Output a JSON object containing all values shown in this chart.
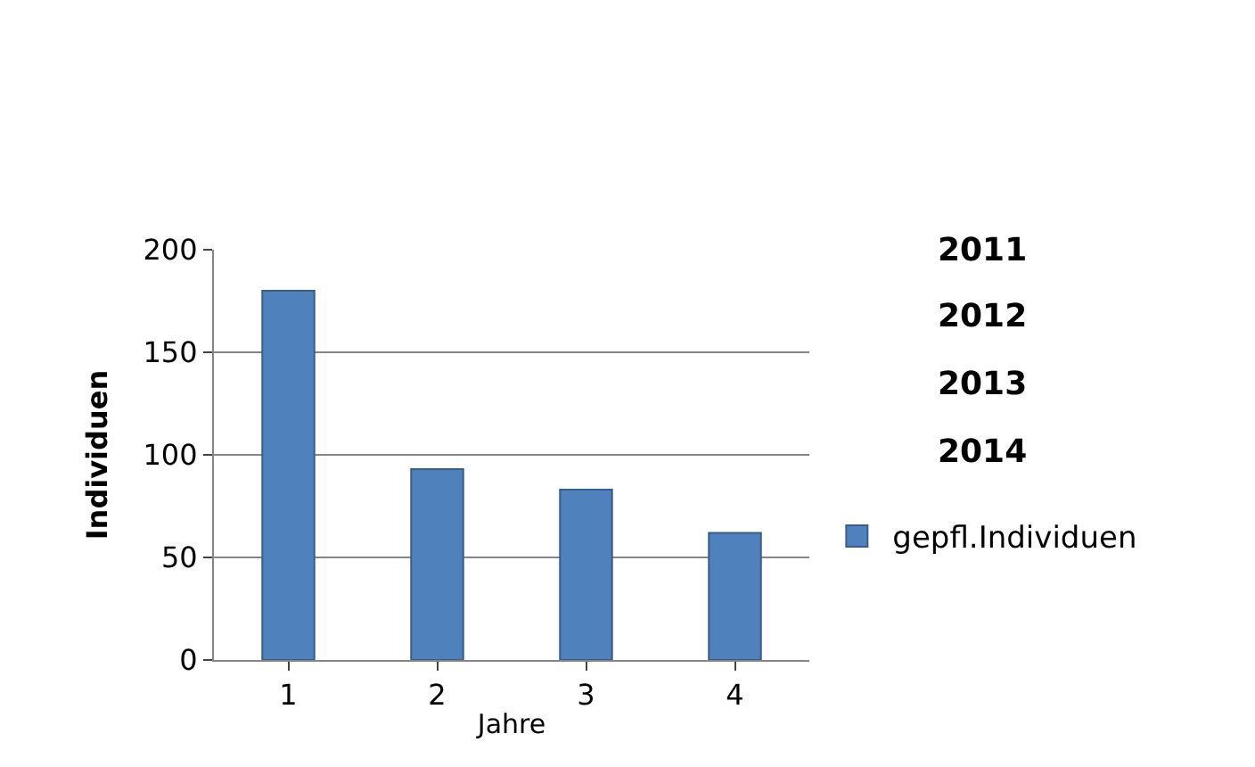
{
  "chart_data": {
    "type": "bar",
    "categories": [
      "1",
      "2",
      "3",
      "4"
    ],
    "series": [
      {
        "name": "gepfl.Individuen",
        "color": "#4f81bd",
        "values": [
          180,
          93,
          83,
          62
        ]
      }
    ],
    "xlabel": "Jahre",
    "ylabel": "Individuen",
    "ylim": [
      0,
      200
    ],
    "yticks": [
      0,
      50,
      100,
      150,
      200
    ],
    "grid": "y",
    "legend": "right",
    "annotations": [
      "2011",
      "2012",
      "2013",
      "2014"
    ]
  }
}
